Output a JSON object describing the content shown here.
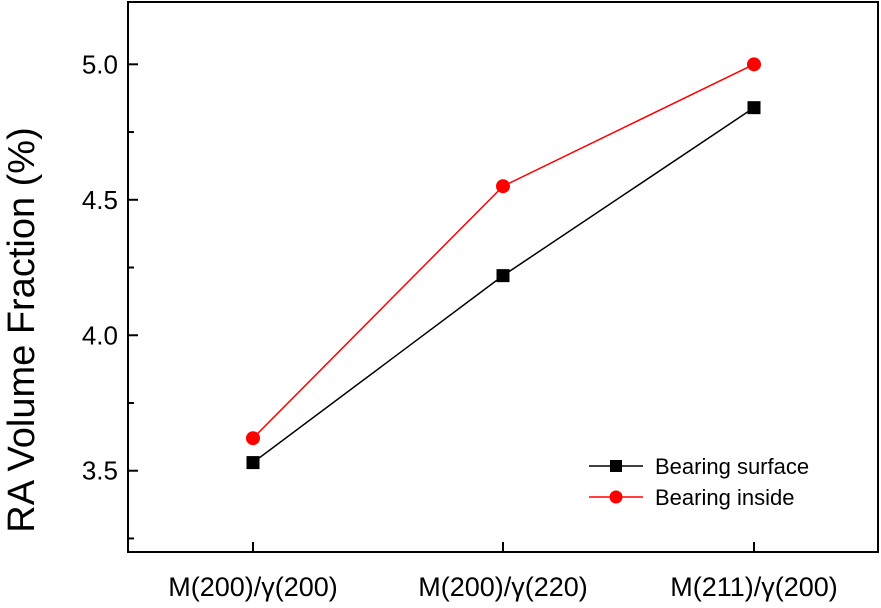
{
  "chart_data": {
    "type": "line",
    "title": "",
    "xlabel": "",
    "ylabel": "RA Volume Fraction (%)",
    "categories": [
      "M(200)/γ(200)",
      "M(200)/γ(220)",
      "M(211)/γ(200)"
    ],
    "ylim": [
      3.2,
      5.23
    ],
    "yticks": [
      3.5,
      4.0,
      4.5,
      5.0
    ],
    "ytick_labels": [
      "3.5",
      "4.0",
      "4.5",
      "5.0"
    ],
    "grid": false,
    "legend_position": "bottom-right",
    "series": [
      {
        "name": "Bearing surface",
        "values": [
          3.53,
          4.22,
          4.84
        ],
        "color": "#000000",
        "marker": "square"
      },
      {
        "name": "Bearing inside",
        "values": [
          3.62,
          4.55,
          5.0
        ],
        "color": "#ff0000",
        "marker": "circle"
      }
    ]
  }
}
